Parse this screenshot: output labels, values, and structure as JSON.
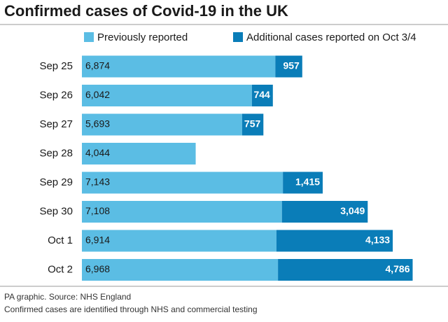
{
  "chart_data": {
    "type": "stacked-bar-horizontal",
    "title": "Confirmed cases of Covid-19 in the UK",
    "categories": [
      "Sep 25",
      "Sep 26",
      "Sep 27",
      "Sep 28",
      "Sep 29",
      "Sep 30",
      "Oct 1",
      "Oct 2"
    ],
    "series": [
      {
        "name": "Previously reported",
        "color": "#5bbde4",
        "values": [
          6874,
          6042,
          5693,
          4044,
          7143,
          7108,
          6914,
          6968
        ],
        "value_labels": [
          "6,874",
          "6,042",
          "5,693",
          "4,044",
          "7,143",
          "7,108",
          "6,914",
          "6,968"
        ]
      },
      {
        "name": "Additional cases reported on Oct 3/4",
        "color": "#0a7db8",
        "values": [
          957,
          744,
          757,
          null,
          1415,
          3049,
          4133,
          4786
        ],
        "value_labels": [
          "957",
          "744",
          "757",
          null,
          "1,415",
          "3,049",
          "4,133",
          "4,786"
        ]
      }
    ],
    "source": "PA graphic. Source: NHS England",
    "note": "Confirmed cases are identified through NHS and commercial testing"
  }
}
